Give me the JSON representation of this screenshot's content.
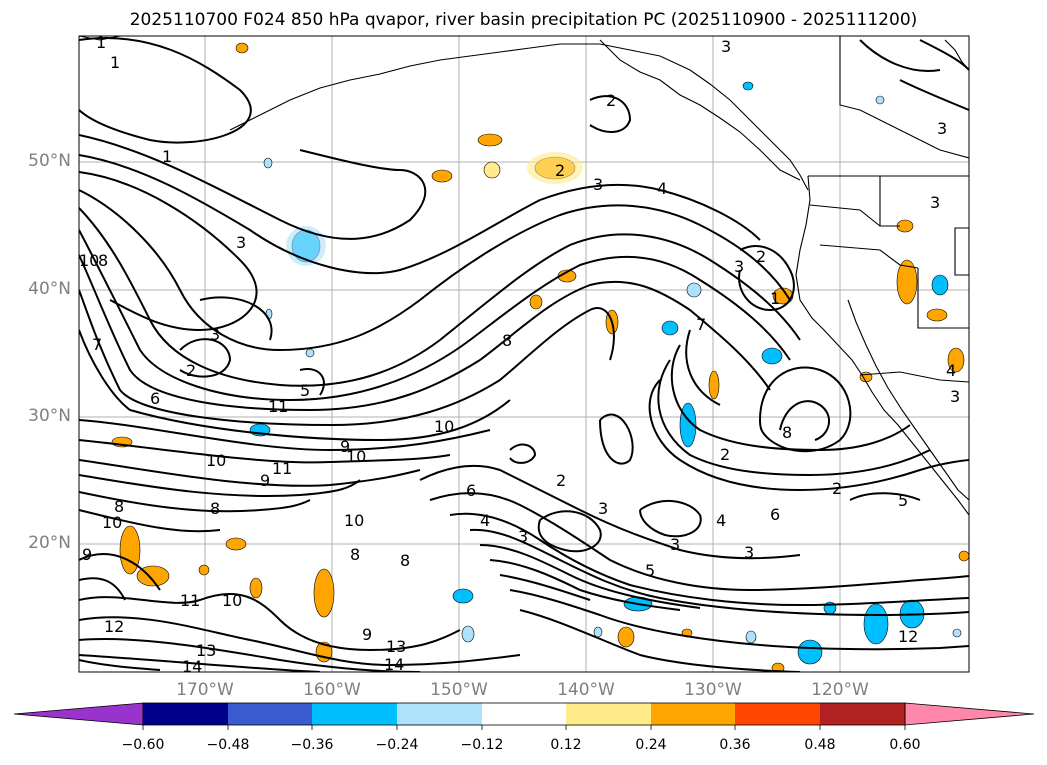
{
  "title": "2025110700 F024 850 hPa qvapor, river basin precipitation PC (2025110900 - 2025111200)",
  "map": {
    "lat_labels": [
      "50°N",
      "40°N",
      "30°N",
      "20°N"
    ],
    "lon_labels": [
      "170°W",
      "160°W",
      "150°W",
      "140°W",
      "130°W",
      "120°W"
    ],
    "contour_labels": [
      "1",
      "1",
      "1",
      "3",
      "2",
      "3",
      "4",
      "3",
      "3",
      "2",
      "2",
      "3",
      "3",
      "3",
      "8",
      "8",
      "10",
      "10",
      "9",
      "11",
      "10",
      "9",
      "10",
      "8",
      "6",
      "7",
      "8",
      "12",
      "11",
      "10",
      "13",
      "14",
      "9",
      "13",
      "14",
      "10",
      "8",
      "8",
      "6",
      "4",
      "3",
      "3",
      "2",
      "3",
      "5",
      "6",
      "4",
      "3",
      "2",
      "5",
      "7",
      "8",
      "10",
      "11",
      "12",
      "9",
      "2",
      "2",
      "1",
      "4",
      "5",
      "3"
    ],
    "land_color": "#000000"
  },
  "colorbar": {
    "ticks": [
      "−0.60",
      "−0.48",
      "−0.36",
      "−0.24",
      "−0.12",
      "0.12",
      "0.24",
      "0.36",
      "0.48",
      "0.60"
    ],
    "colors": [
      "#9933cc",
      "#00008b",
      "#3a5bd0",
      "#00bfff",
      "#aee1fa",
      "#ffffff",
      "#ffeb8a",
      "#ffa500",
      "#ff4500",
      "#b22222",
      "#ff88aa"
    ]
  }
}
